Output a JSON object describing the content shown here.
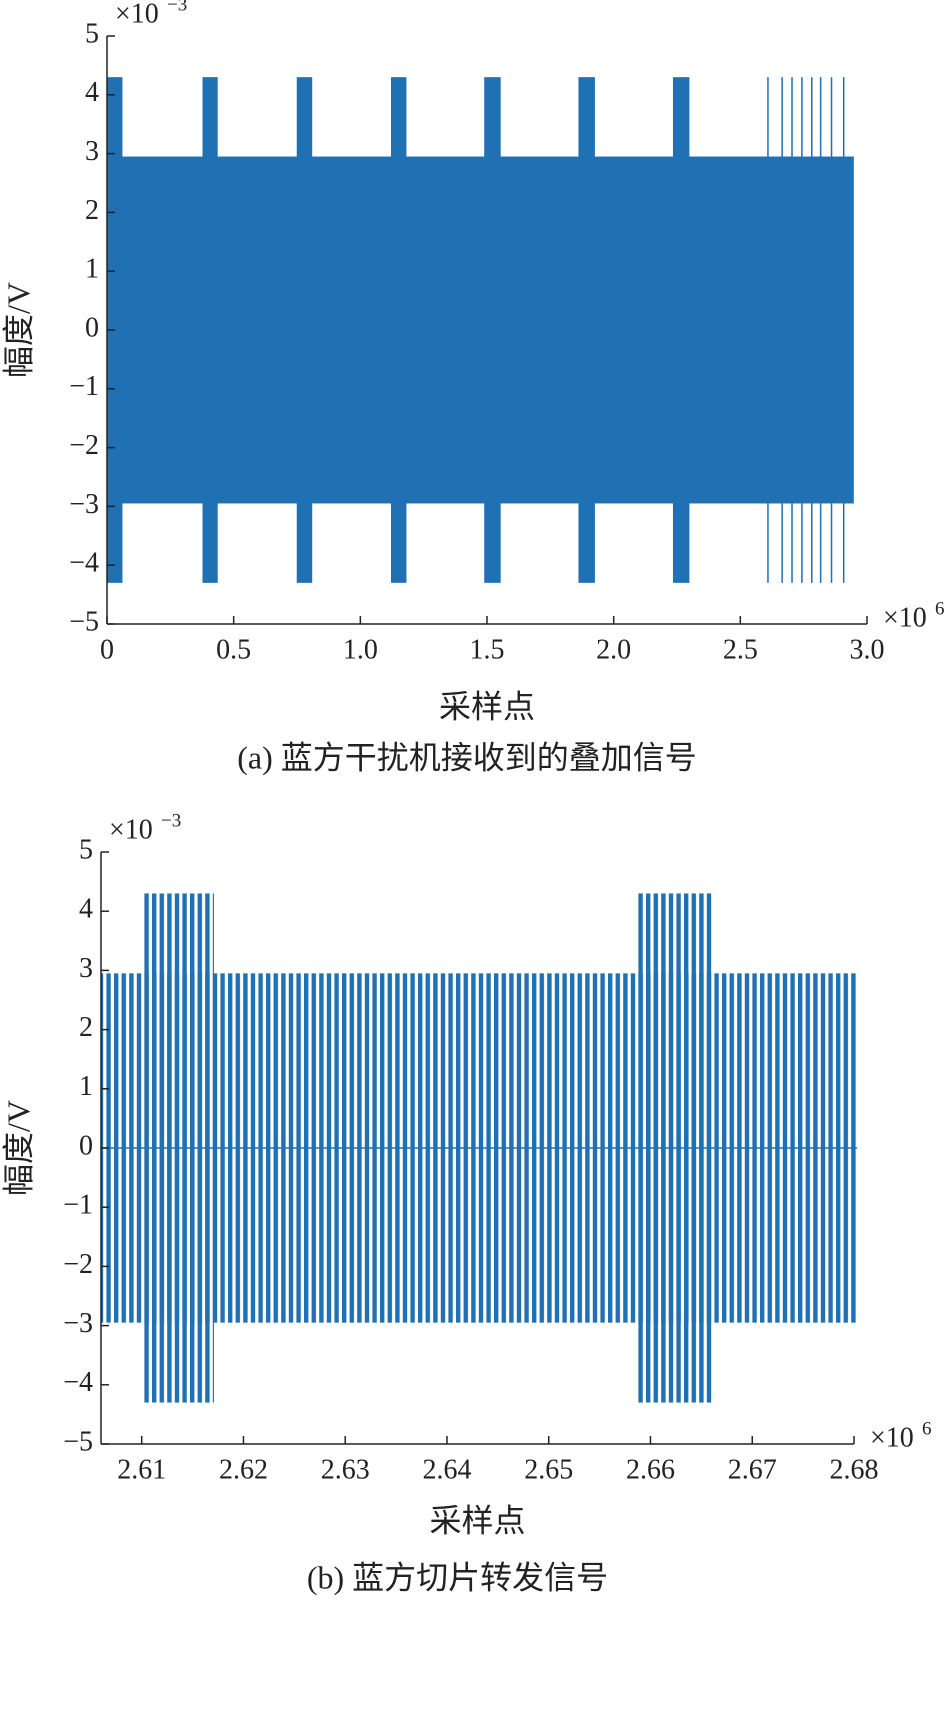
{
  "chart_data": [
    {
      "type": "envelope",
      "color": "#2070b4",
      "striped": false,
      "y_multiplier": {
        "base": "×10",
        "exponent": "−3"
      },
      "x_multiplier": {
        "base": "×10",
        "exponent": "6"
      },
      "xlabel": "采样点",
      "ylabel": "幅度/V",
      "caption": "(a) 蓝方干扰机接收到的叠加信号",
      "xlim": [
        0,
        3
      ],
      "xticks": [
        0,
        0.5,
        {
          "value": 1,
          "label": "1.0"
        },
        1.5,
        {
          "value": 2,
          "label": "2.0"
        },
        2.5,
        {
          "value": 3,
          "label": "3.0"
        }
      ],
      "ylim": [
        -5,
        5
      ],
      "yticks": [
        {
          "value": -5,
          "label": "−5"
        },
        {
          "value": -4,
          "label": "−4"
        },
        {
          "value": -3,
          "label": "−3"
        },
        {
          "value": -2,
          "label": "−2"
        },
        {
          "value": -1,
          "label": "−1"
        },
        0,
        1,
        2,
        3,
        4,
        5
      ],
      "x_start": [
        0,
        0,
        0.377,
        0.749,
        1.121,
        1.489,
        1.861,
        2.234,
        2.606,
        2.662,
        2.701,
        2.74,
        2.779,
        2.814,
        2.857,
        2.905
      ],
      "x_end": [
        2.948,
        0.061,
        0.437,
        0.81,
        1.182,
        1.554,
        1.926,
        2.299,
        2.612,
        2.668,
        2.707,
        2.746,
        2.785,
        2.82,
        2.863,
        2.911
      ],
      "values": [
        2.95,
        4.3,
        4.3,
        4.3,
        4.3,
        4.3,
        4.3,
        4.3,
        4.3,
        4.3,
        4.3,
        4.3,
        4.3,
        4.3,
        4.3,
        4.3
      ]
    },
    {
      "type": "envelope",
      "color": "#2070b4",
      "striped": true,
      "y_multiplier": {
        "base": "×10",
        "exponent": "−3"
      },
      "x_multiplier": {
        "base": "×10",
        "exponent": "6"
      },
      "xlabel": "采样点",
      "ylabel": "幅度/V",
      "caption": "(b) 蓝方切片转发信号",
      "xlim": [
        2.606,
        2.68
      ],
      "xticks": [
        2.61,
        2.62,
        2.63,
        2.64,
        2.65,
        2.66,
        2.67,
        2.68
      ],
      "ylim": [
        -5,
        5
      ],
      "yticks": [
        {
          "value": -5,
          "label": "−5"
        },
        {
          "value": -4,
          "label": "−4"
        },
        {
          "value": -3,
          "label": "−3"
        },
        {
          "value": -2,
          "label": "−2"
        },
        {
          "value": -1,
          "label": "−1"
        },
        0,
        1,
        2,
        3,
        4,
        5
      ],
      "x_start": [
        2.606,
        2.61,
        2.6587
      ],
      "x_end": [
        2.6803,
        2.6171,
        2.666
      ],
      "values": [
        2.95,
        4.3,
        4.3
      ]
    }
  ]
}
